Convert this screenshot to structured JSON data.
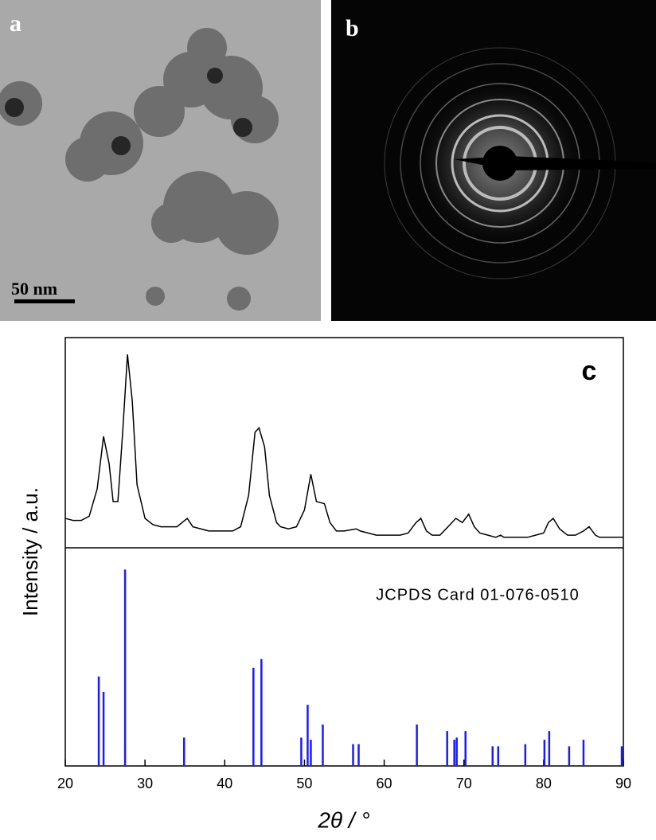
{
  "panels": {
    "a": {
      "label": "a",
      "scale_bar": "50 nm"
    },
    "b": {
      "label": "b"
    }
  },
  "chart_data": {
    "type": "xrd",
    "panel_label": "c",
    "x_label": "2θ / °",
    "y_label": "Intensity / a.u.",
    "xlim": [
      20,
      90
    ],
    "xticks": [
      20,
      30,
      40,
      50,
      60,
      70,
      80,
      90
    ],
    "pattern": {
      "color": "#000000",
      "ylim": [
        0,
        100
      ],
      "x": [
        20,
        21,
        22,
        23,
        24,
        24.8,
        25.5,
        26,
        26.6,
        27.2,
        27.8,
        28.4,
        29,
        30,
        31,
        32,
        33,
        34,
        35.3,
        36,
        37,
        38,
        39,
        40,
        41,
        42,
        43,
        43.8,
        44.3,
        45,
        45.6,
        46.5,
        47,
        48,
        49,
        50,
        50.8,
        51.5,
        52.5,
        53.2,
        54,
        55,
        56.5,
        57,
        58,
        59,
        60,
        61,
        62,
        63,
        64,
        64.6,
        65.3,
        66,
        67,
        68,
        69,
        69.8,
        70.6,
        71.3,
        72,
        73,
        74,
        74.6,
        75,
        76,
        77,
        78,
        79,
        80,
        80.6,
        81.2,
        82,
        83,
        84,
        85,
        85.7,
        86.5,
        87,
        88,
        89,
        90
      ],
      "values": [
        14,
        13,
        13,
        15,
        28,
        53,
        40,
        22,
        22,
        55,
        92,
        70,
        30,
        14,
        11,
        10,
        10,
        10,
        14,
        10,
        9,
        8,
        8,
        8,
        8,
        10,
        25,
        55,
        57,
        48,
        25,
        12,
        10,
        9,
        10,
        18,
        35,
        22,
        21,
        12,
        8,
        8,
        9,
        8,
        7,
        6,
        6,
        6,
        6,
        7,
        12,
        14,
        8,
        6,
        6,
        10,
        14,
        12,
        16,
        10,
        7,
        6,
        5,
        6,
        5,
        5,
        5,
        5,
        6,
        7,
        12,
        14,
        9,
        6,
        6,
        8,
        10,
        6,
        5,
        5,
        5,
        5
      ]
    },
    "reference": {
      "name": "JCPDS Card 01-076-0510",
      "color": "#1a1aff",
      "ylim": [
        0,
        100
      ],
      "x": [
        24.2,
        24.8,
        27.5,
        34.9,
        43.6,
        44.6,
        49.6,
        50.4,
        50.8,
        52.3,
        56.1,
        56.8,
        64.1,
        67.9,
        68.8,
        69.1,
        70.2,
        73.6,
        74.3,
        77.7,
        80.1,
        80.7,
        83.2,
        85.0,
        89.8
      ],
      "values": [
        41,
        34,
        90,
        13,
        45,
        49,
        13,
        28,
        12,
        19,
        10,
        10,
        19,
        16,
        12,
        13,
        16,
        9,
        9,
        10,
        12,
        16,
        9,
        12,
        9
      ]
    }
  }
}
